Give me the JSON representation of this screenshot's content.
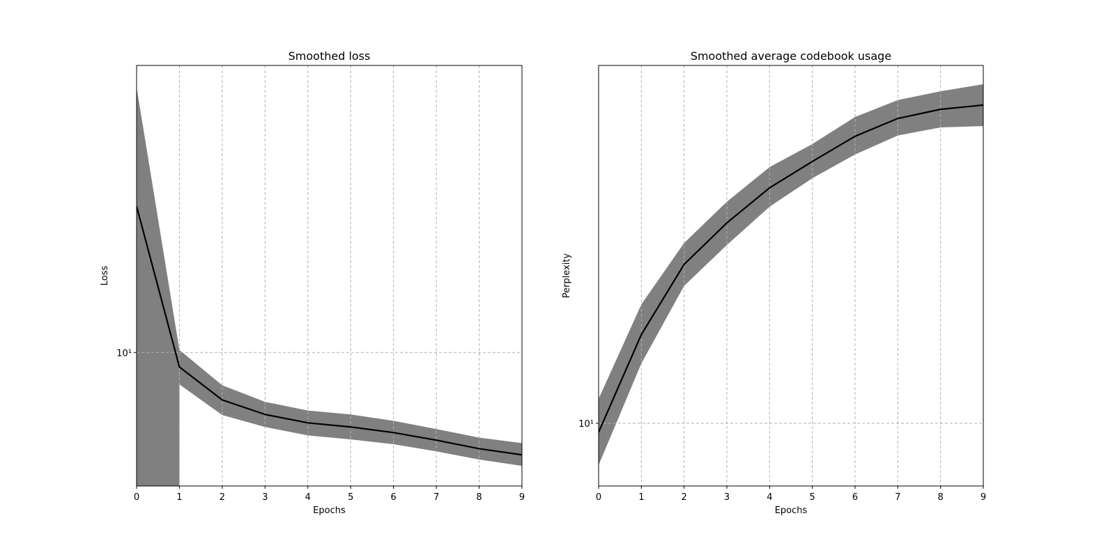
{
  "chart_data": [
    {
      "type": "line",
      "title": "Smoothed loss",
      "x_label": "Epochs",
      "y_label": "Loss",
      "x": [
        0,
        1,
        2,
        3,
        4,
        5,
        6,
        7,
        8,
        9
      ],
      "xlim": [
        0,
        9
      ],
      "xticks": [
        0,
        1,
        2,
        3,
        4,
        5,
        6,
        7,
        8,
        9
      ],
      "ylim": [
        6,
        30
      ],
      "yticks": [
        {
          "value": 10,
          "label": "10¹"
        }
      ],
      "yscale": "log",
      "grid": true,
      "series": [
        {
          "color": "#000000",
          "values": [
            17.5,
            9.46,
            8.34,
            7.89,
            7.64,
            7.52,
            7.36,
            7.15,
            6.92,
            6.76
          ]
        }
      ],
      "band": {
        "color": "#808080",
        "upper": [
          27.6,
          10.1,
          8.82,
          8.28,
          8.01,
          7.89,
          7.7,
          7.46,
          7.22,
          7.07
        ],
        "lower": [
          null,
          8.85,
          7.87,
          7.52,
          7.28,
          7.17,
          7.04,
          6.85,
          6.64,
          6.48
        ]
      }
    },
    {
      "type": "line",
      "title": "Smoothed average codebook usage",
      "x_label": "Epochs",
      "y_label": "Perplexity",
      "x": [
        0,
        1,
        2,
        3,
        4,
        5,
        6,
        7,
        8,
        9
      ],
      "xlim": [
        0,
        9
      ],
      "xticks": [
        0,
        1,
        2,
        3,
        4,
        5,
        6,
        7,
        8,
        9
      ],
      "ylim": [
        6.68,
        100
      ],
      "yticks": [
        {
          "value": 10,
          "label": "10¹"
        }
      ],
      "yscale": "log",
      "grid": true,
      "series": [
        {
          "color": "#000000",
          "values": [
            9.44,
            17.7,
            27.8,
            36.3,
            45.5,
            53.9,
            63.4,
            71.1,
            75.4,
            77.5
          ]
        }
      ],
      "band": {
        "color": "#808080",
        "upper": [
          11.7,
          21.5,
          31.9,
          41.6,
          52.0,
          60.3,
          71.8,
          80.0,
          84.7,
          88.6
        ],
        "lower": [
          7.64,
          14.7,
          24.2,
          31.5,
          40.3,
          48.4,
          56.4,
          63.7,
          67.1,
          67.7
        ]
      }
    }
  ]
}
